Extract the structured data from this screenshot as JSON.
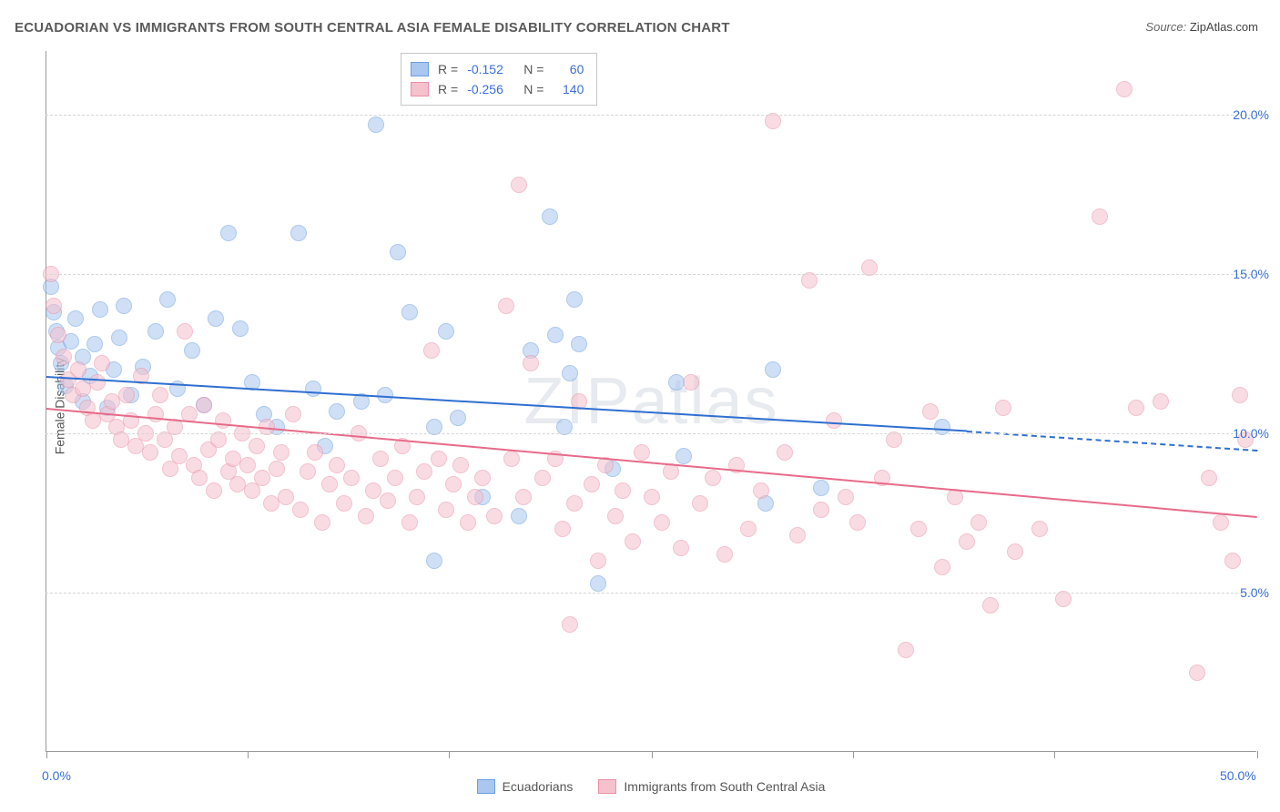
{
  "title": "ECUADORIAN VS IMMIGRANTS FROM SOUTH CENTRAL ASIA FEMALE DISABILITY CORRELATION CHART",
  "source": {
    "label": "Source:",
    "value": "ZipAtlas.com"
  },
  "ylabel": "Female Disability",
  "watermark": "ZIPatlas",
  "chart": {
    "type": "scatter",
    "xlim": [
      0,
      50
    ],
    "ylim": [
      0,
      22
    ],
    "x_ticks": [
      0,
      8.3,
      16.6,
      25,
      33.3,
      41.6,
      50
    ],
    "x_tick_labels": {
      "0": "0.0%",
      "50": "50.0%"
    },
    "y_gridlines": [
      5,
      10,
      15,
      20
    ],
    "y_tick_labels": [
      "5.0%",
      "10.0%",
      "15.0%",
      "20.0%"
    ],
    "grid_color": "#d6d6d6",
    "axis_color": "#999999",
    "tick_label_color": "#3a6fd8",
    "background_color": "#ffffff",
    "marker_radius": 9,
    "marker_opacity": 0.55,
    "series": [
      {
        "name": "Ecuadorians",
        "color_fill": "#a9c7ef",
        "color_stroke": "#6a9de0",
        "legend_R": "-0.152",
        "legend_N": "60",
        "trend": {
          "x1": 0,
          "y1": 11.8,
          "x2": 38,
          "y2": 10.1,
          "dash_to_x": 50,
          "dash_to_y": 9.5,
          "color": "#2f6fd0"
        },
        "points": [
          [
            0.2,
            14.6
          ],
          [
            0.3,
            13.8
          ],
          [
            0.4,
            13.2
          ],
          [
            0.5,
            12.7
          ],
          [
            0.6,
            12.2
          ],
          [
            0.8,
            11.5
          ],
          [
            1.0,
            12.9
          ],
          [
            1.2,
            13.6
          ],
          [
            1.5,
            12.4
          ],
          [
            1.5,
            11.0
          ],
          [
            1.8,
            11.8
          ],
          [
            2.0,
            12.8
          ],
          [
            2.2,
            13.9
          ],
          [
            2.5,
            10.8
          ],
          [
            2.8,
            12.0
          ],
          [
            3.0,
            13.0
          ],
          [
            3.2,
            14.0
          ],
          [
            3.5,
            11.2
          ],
          [
            4.0,
            12.1
          ],
          [
            4.5,
            13.2
          ],
          [
            5.0,
            14.2
          ],
          [
            5.4,
            11.4
          ],
          [
            6.0,
            12.6
          ],
          [
            6.5,
            10.9
          ],
          [
            7.0,
            13.6
          ],
          [
            7.5,
            16.3
          ],
          [
            8.0,
            13.3
          ],
          [
            8.5,
            11.6
          ],
          [
            9.0,
            10.6
          ],
          [
            9.5,
            10.2
          ],
          [
            10.4,
            16.3
          ],
          [
            11.0,
            11.4
          ],
          [
            11.5,
            9.6
          ],
          [
            12.0,
            10.7
          ],
          [
            13.0,
            11.0
          ],
          [
            13.6,
            19.7
          ],
          [
            14.0,
            11.2
          ],
          [
            14.5,
            15.7
          ],
          [
            15.0,
            13.8
          ],
          [
            16.0,
            10.2
          ],
          [
            16.0,
            6.0
          ],
          [
            16.5,
            13.2
          ],
          [
            17.0,
            10.5
          ],
          [
            18.0,
            8.0
          ],
          [
            19.5,
            7.4
          ],
          [
            20.0,
            12.6
          ],
          [
            20.8,
            16.8
          ],
          [
            21.0,
            13.1
          ],
          [
            21.4,
            10.2
          ],
          [
            21.6,
            11.9
          ],
          [
            21.8,
            14.2
          ],
          [
            22.0,
            12.8
          ],
          [
            22.8,
            5.3
          ],
          [
            23.4,
            8.9
          ],
          [
            26.0,
            11.6
          ],
          [
            26.3,
            9.3
          ],
          [
            29.7,
            7.8
          ],
          [
            30.0,
            12.0
          ],
          [
            32.0,
            8.3
          ],
          [
            37.0,
            10.2
          ]
        ]
      },
      {
        "name": "Immigrants from South Central Asia",
        "color_fill": "#f5c1cd",
        "color_stroke": "#eb8fa5",
        "legend_R": "-0.256",
        "legend_N": "140",
        "trend": {
          "x1": 0,
          "y1": 10.8,
          "x2": 50,
          "y2": 7.4,
          "color": "#e76a8a"
        },
        "points": [
          [
            0.2,
            15.0
          ],
          [
            0.3,
            14.0
          ],
          [
            0.5,
            13.1
          ],
          [
            0.7,
            12.4
          ],
          [
            0.9,
            11.7
          ],
          [
            1.1,
            11.2
          ],
          [
            1.3,
            12.0
          ],
          [
            1.5,
            11.4
          ],
          [
            1.7,
            10.8
          ],
          [
            1.9,
            10.4
          ],
          [
            2.1,
            11.6
          ],
          [
            2.3,
            12.2
          ],
          [
            2.5,
            10.6
          ],
          [
            2.7,
            11.0
          ],
          [
            2.9,
            10.2
          ],
          [
            3.1,
            9.8
          ],
          [
            3.3,
            11.2
          ],
          [
            3.5,
            10.4
          ],
          [
            3.7,
            9.6
          ],
          [
            3.9,
            11.8
          ],
          [
            4.1,
            10.0
          ],
          [
            4.3,
            9.4
          ],
          [
            4.5,
            10.6
          ],
          [
            4.7,
            11.2
          ],
          [
            4.9,
            9.8
          ],
          [
            5.1,
            8.9
          ],
          [
            5.3,
            10.2
          ],
          [
            5.5,
            9.3
          ],
          [
            5.7,
            13.2
          ],
          [
            5.9,
            10.6
          ],
          [
            6.1,
            9.0
          ],
          [
            6.3,
            8.6
          ],
          [
            6.5,
            10.9
          ],
          [
            6.7,
            9.5
          ],
          [
            6.9,
            8.2
          ],
          [
            7.1,
            9.8
          ],
          [
            7.3,
            10.4
          ],
          [
            7.5,
            8.8
          ],
          [
            7.7,
            9.2
          ],
          [
            7.9,
            8.4
          ],
          [
            8.1,
            10.0
          ],
          [
            8.3,
            9.0
          ],
          [
            8.5,
            8.2
          ],
          [
            8.7,
            9.6
          ],
          [
            8.9,
            8.6
          ],
          [
            9.1,
            10.2
          ],
          [
            9.3,
            7.8
          ],
          [
            9.5,
            8.9
          ],
          [
            9.7,
            9.4
          ],
          [
            9.9,
            8.0
          ],
          [
            10.2,
            10.6
          ],
          [
            10.5,
            7.6
          ],
          [
            10.8,
            8.8
          ],
          [
            11.1,
            9.4
          ],
          [
            11.4,
            7.2
          ],
          [
            11.7,
            8.4
          ],
          [
            12.0,
            9.0
          ],
          [
            12.3,
            7.8
          ],
          [
            12.6,
            8.6
          ],
          [
            12.9,
            10.0
          ],
          [
            13.2,
            7.4
          ],
          [
            13.5,
            8.2
          ],
          [
            13.8,
            9.2
          ],
          [
            14.1,
            7.9
          ],
          [
            14.4,
            8.6
          ],
          [
            14.7,
            9.6
          ],
          [
            15.0,
            7.2
          ],
          [
            15.3,
            8.0
          ],
          [
            15.6,
            8.8
          ],
          [
            15.9,
            12.6
          ],
          [
            16.2,
            9.2
          ],
          [
            16.5,
            7.6
          ],
          [
            16.8,
            8.4
          ],
          [
            17.1,
            9.0
          ],
          [
            17.4,
            7.2
          ],
          [
            17.7,
            8.0
          ],
          [
            18.0,
            8.6
          ],
          [
            18.5,
            7.4
          ],
          [
            19.0,
            14.0
          ],
          [
            19.2,
            9.2
          ],
          [
            19.5,
            17.8
          ],
          [
            19.7,
            8.0
          ],
          [
            20.0,
            12.2
          ],
          [
            20.5,
            8.6
          ],
          [
            21.0,
            9.2
          ],
          [
            21.3,
            7.0
          ],
          [
            21.6,
            4.0
          ],
          [
            21.8,
            7.8
          ],
          [
            22.0,
            11.0
          ],
          [
            22.5,
            8.4
          ],
          [
            22.8,
            6.0
          ],
          [
            23.1,
            9.0
          ],
          [
            23.5,
            7.4
          ],
          [
            23.8,
            8.2
          ],
          [
            24.2,
            6.6
          ],
          [
            24.6,
            9.4
          ],
          [
            25.0,
            8.0
          ],
          [
            25.4,
            7.2
          ],
          [
            25.8,
            8.8
          ],
          [
            26.2,
            6.4
          ],
          [
            26.6,
            11.6
          ],
          [
            27.0,
            7.8
          ],
          [
            27.5,
            8.6
          ],
          [
            28.0,
            6.2
          ],
          [
            28.5,
            9.0
          ],
          [
            29.0,
            7.0
          ],
          [
            29.5,
            8.2
          ],
          [
            30.0,
            19.8
          ],
          [
            30.5,
            9.4
          ],
          [
            31.0,
            6.8
          ],
          [
            31.5,
            14.8
          ],
          [
            32.0,
            7.6
          ],
          [
            32.5,
            10.4
          ],
          [
            33.0,
            8.0
          ],
          [
            33.5,
            7.2
          ],
          [
            34.0,
            15.2
          ],
          [
            34.5,
            8.6
          ],
          [
            35.0,
            9.8
          ],
          [
            35.5,
            3.2
          ],
          [
            36.0,
            7.0
          ],
          [
            36.5,
            10.7
          ],
          [
            37.0,
            5.8
          ],
          [
            37.5,
            8.0
          ],
          [
            38.0,
            6.6
          ],
          [
            38.5,
            7.2
          ],
          [
            39.0,
            4.6
          ],
          [
            39.5,
            10.8
          ],
          [
            40.0,
            6.3
          ],
          [
            41.0,
            7.0
          ],
          [
            42.0,
            4.8
          ],
          [
            43.5,
            16.8
          ],
          [
            44.5,
            20.8
          ],
          [
            45.0,
            10.8
          ],
          [
            46.0,
            11.0
          ],
          [
            47.5,
            2.5
          ],
          [
            48.0,
            8.6
          ],
          [
            48.5,
            7.2
          ],
          [
            49.0,
            6.0
          ],
          [
            49.3,
            11.2
          ],
          [
            49.5,
            9.8
          ]
        ]
      }
    ]
  },
  "legend_bottom": [
    {
      "label": "Ecuadorians",
      "fill": "#a9c7ef",
      "stroke": "#6a9de0"
    },
    {
      "label": "Immigrants from South Central Asia",
      "fill": "#f5c1cd",
      "stroke": "#eb8fa5"
    }
  ]
}
